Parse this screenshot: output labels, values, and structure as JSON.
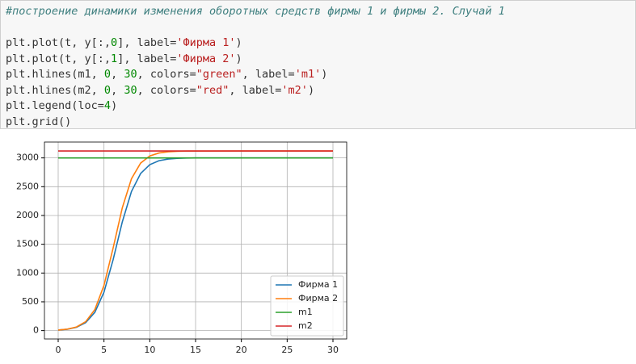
{
  "code": {
    "lines": [
      [
        {
          "text": "#построение динамики изменения оборотных средств фирмы 1 и фирмы 2. Случай 1",
          "color": "#408080",
          "italic": true
        }
      ],
      [],
      [
        {
          "text": "plt.plot(t, y[:,",
          "color": "#333333"
        },
        {
          "text": "0",
          "color": "#008800"
        },
        {
          "text": "], label=",
          "color": "#333333"
        },
        {
          "text": "'Фирма 1'",
          "color": "#ba2121"
        },
        {
          "text": ")",
          "color": "#333333"
        }
      ],
      [
        {
          "text": "plt.plot(t, y[:,",
          "color": "#333333"
        },
        {
          "text": "1",
          "color": "#008800"
        },
        {
          "text": "], label=",
          "color": "#333333"
        },
        {
          "text": "'Фирма 2'",
          "color": "#ba2121"
        },
        {
          "text": ")",
          "color": "#333333"
        }
      ],
      [
        {
          "text": "plt.hlines(m1, ",
          "color": "#333333"
        },
        {
          "text": "0",
          "color": "#008800"
        },
        {
          "text": ", ",
          "color": "#333333"
        },
        {
          "text": "30",
          "color": "#008800"
        },
        {
          "text": ", colors=",
          "color": "#333333"
        },
        {
          "text": "\"green\"",
          "color": "#ba2121"
        },
        {
          "text": ", label=",
          "color": "#333333"
        },
        {
          "text": "'m1'",
          "color": "#ba2121"
        },
        {
          "text": ")",
          "color": "#333333"
        }
      ],
      [
        {
          "text": "plt.hlines(m2, ",
          "color": "#333333"
        },
        {
          "text": "0",
          "color": "#008800"
        },
        {
          "text": ", ",
          "color": "#333333"
        },
        {
          "text": "30",
          "color": "#008800"
        },
        {
          "text": ", colors=",
          "color": "#333333"
        },
        {
          "text": "\"red\"",
          "color": "#ba2121"
        },
        {
          "text": ", label=",
          "color": "#333333"
        },
        {
          "text": "'m2'",
          "color": "#ba2121"
        },
        {
          "text": ")",
          "color": "#333333"
        }
      ],
      [
        {
          "text": "plt.legend(loc=",
          "color": "#333333"
        },
        {
          "text": "4",
          "color": "#008800"
        },
        {
          "text": ")",
          "color": "#333333"
        }
      ],
      [
        {
          "text": "plt.grid()",
          "color": "#333333"
        }
      ]
    ]
  },
  "chart_data": {
    "type": "line",
    "x": [
      0,
      1,
      2,
      3,
      4,
      5,
      6,
      7,
      8,
      9,
      10,
      11,
      12,
      13,
      14,
      15,
      20,
      25,
      30
    ],
    "series": [
      {
        "name": "Фирма 1",
        "color": "#1f77b4",
        "values": [
          10,
          24,
          58,
          139,
          316,
          668,
          1233,
          1888,
          2416,
          2729,
          2882,
          2951,
          2980,
          2992,
          2997,
          2999,
          3000,
          3000,
          3000
        ]
      },
      {
        "name": "Фирма 2",
        "color": "#ff7f0e",
        "values": [
          10,
          25,
          63,
          155,
          365,
          786,
          1436,
          2133,
          2638,
          2910,
          3034,
          3085,
          3106,
          3115,
          3118,
          3119,
          3120,
          3120,
          3120
        ]
      }
    ],
    "hlines": [
      {
        "name": "m1",
        "color": "#2ca02c",
        "y": 3000,
        "xrange": [
          0,
          30
        ]
      },
      {
        "name": "m2",
        "color": "#d62728",
        "y": 3120,
        "xrange": [
          0,
          30
        ]
      }
    ],
    "xlim": [
      -1.5,
      31.5
    ],
    "ylim": [
      -145.5,
      3275.5
    ],
    "xticks": [
      0,
      5,
      10,
      15,
      20,
      25,
      30
    ],
    "yticks": [
      0,
      500,
      1000,
      1500,
      2000,
      2500,
      3000
    ],
    "grid": true,
    "legend": "lower-right"
  }
}
